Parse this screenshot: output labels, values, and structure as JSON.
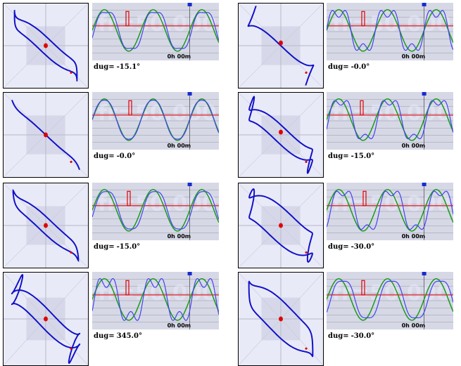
{
  "panels": [
    {
      "id": "p1",
      "label": "dug=",
      "value": "-15.1°",
      "time": "0h 00m",
      "watermark": "fr=50.000",
      "lissajous": {
        "a": 1.0,
        "b": 1.0,
        "phase_deg": -15.1,
        "harm": 0.12
      },
      "wave": {
        "green_phase": 0,
        "blue_phase": -15.1,
        "blue_harm": 0.12,
        "red_level": 0.62
      }
    },
    {
      "id": "p2",
      "label": "dug=",
      "value": "-0.0°",
      "time": "0h 00m",
      "watermark": "fr=50.000",
      "lissajous": {
        "a": 1.0,
        "b": 1.0,
        "phase_deg": 0,
        "harm": 0.3
      },
      "wave": {
        "green_phase": 0,
        "blue_phase": 0,
        "blue_harm": 0.3,
        "red_level": 0.62
      }
    },
    {
      "id": "p3",
      "label": "dug=",
      "value": "-0.0°",
      "time": "0h 00m",
      "watermark": "fr=50.000",
      "lissajous": {
        "a": 1.0,
        "b": 1.0,
        "phase_deg": 0,
        "harm": 0.05
      },
      "wave": {
        "green_phase": 0,
        "blue_phase": 0,
        "blue_harm": 0.05,
        "red_level": 0.62
      }
    },
    {
      "id": "p4",
      "label": "dug=",
      "value": "-15.0°",
      "time": "0h 00m",
      "watermark": "fr=50.000",
      "lissajous": {
        "a": 1.0,
        "b": 1.0,
        "phase_deg": -15,
        "harm": 0.25
      },
      "wave": {
        "green_phase": 0,
        "blue_phase": -15,
        "blue_harm": 0.25,
        "red_level": 0.62
      }
    },
    {
      "id": "p5",
      "label": "dug=",
      "value": "-15.0°",
      "time": "0h 00m",
      "watermark": "fr=50.000",
      "lissajous": {
        "a": 1.0,
        "b": 1.0,
        "phase_deg": -15,
        "harm": 0.08
      },
      "wave": {
        "green_phase": 0,
        "blue_phase": -15,
        "blue_harm": 0.08,
        "red_level": 0.62
      }
    },
    {
      "id": "p6",
      "label": "dug=",
      "value": "-30.0°",
      "time": "0h 00m",
      "watermark": "fr=50.000",
      "lissajous": {
        "a": 1.0,
        "b": 1.0,
        "phase_deg": -30,
        "harm": 0.25
      },
      "wave": {
        "green_phase": 0,
        "blue_phase": -30,
        "blue_harm": 0.25,
        "red_level": 0.62
      }
    },
    {
      "id": "p7",
      "label": "dug=",
      "value": "345.0°",
      "time": "0h 00m",
      "watermark": "fr=50.000",
      "lissajous": {
        "a": 1.0,
        "b": 1.0,
        "phase_deg": 345,
        "harm": 0.35
      },
      "wave": {
        "green_phase": 0,
        "blue_phase": 345,
        "blue_harm": 0.35,
        "red_level": 0.62
      }
    },
    {
      "id": "p8",
      "label": "dug=",
      "value": "-30.0°",
      "time": "0h 00m",
      "watermark": "fr=50.000",
      "lissajous": {
        "a": 1.0,
        "b": 1.0,
        "phase_deg": -30,
        "harm": 0.1
      },
      "wave": {
        "green_phase": 0,
        "blue_phase": -30,
        "blue_harm": 0.1,
        "red_level": 0.62
      }
    }
  ],
  "colors": {
    "curve": "#1010c8",
    "green": "#1a9a1a",
    "blue": "#4444ee",
    "red": "#e00000",
    "grid": "#9a9aa8",
    "marker": "#1a2ad0"
  },
  "chart_data": {
    "type": "line",
    "title": "",
    "series": [
      {
        "values": [
          -15.1,
          -0.0,
          -0.0,
          -15.0,
          -15.0,
          -30.0,
          345.0,
          -30.0
        ]
      }
    ]
  }
}
